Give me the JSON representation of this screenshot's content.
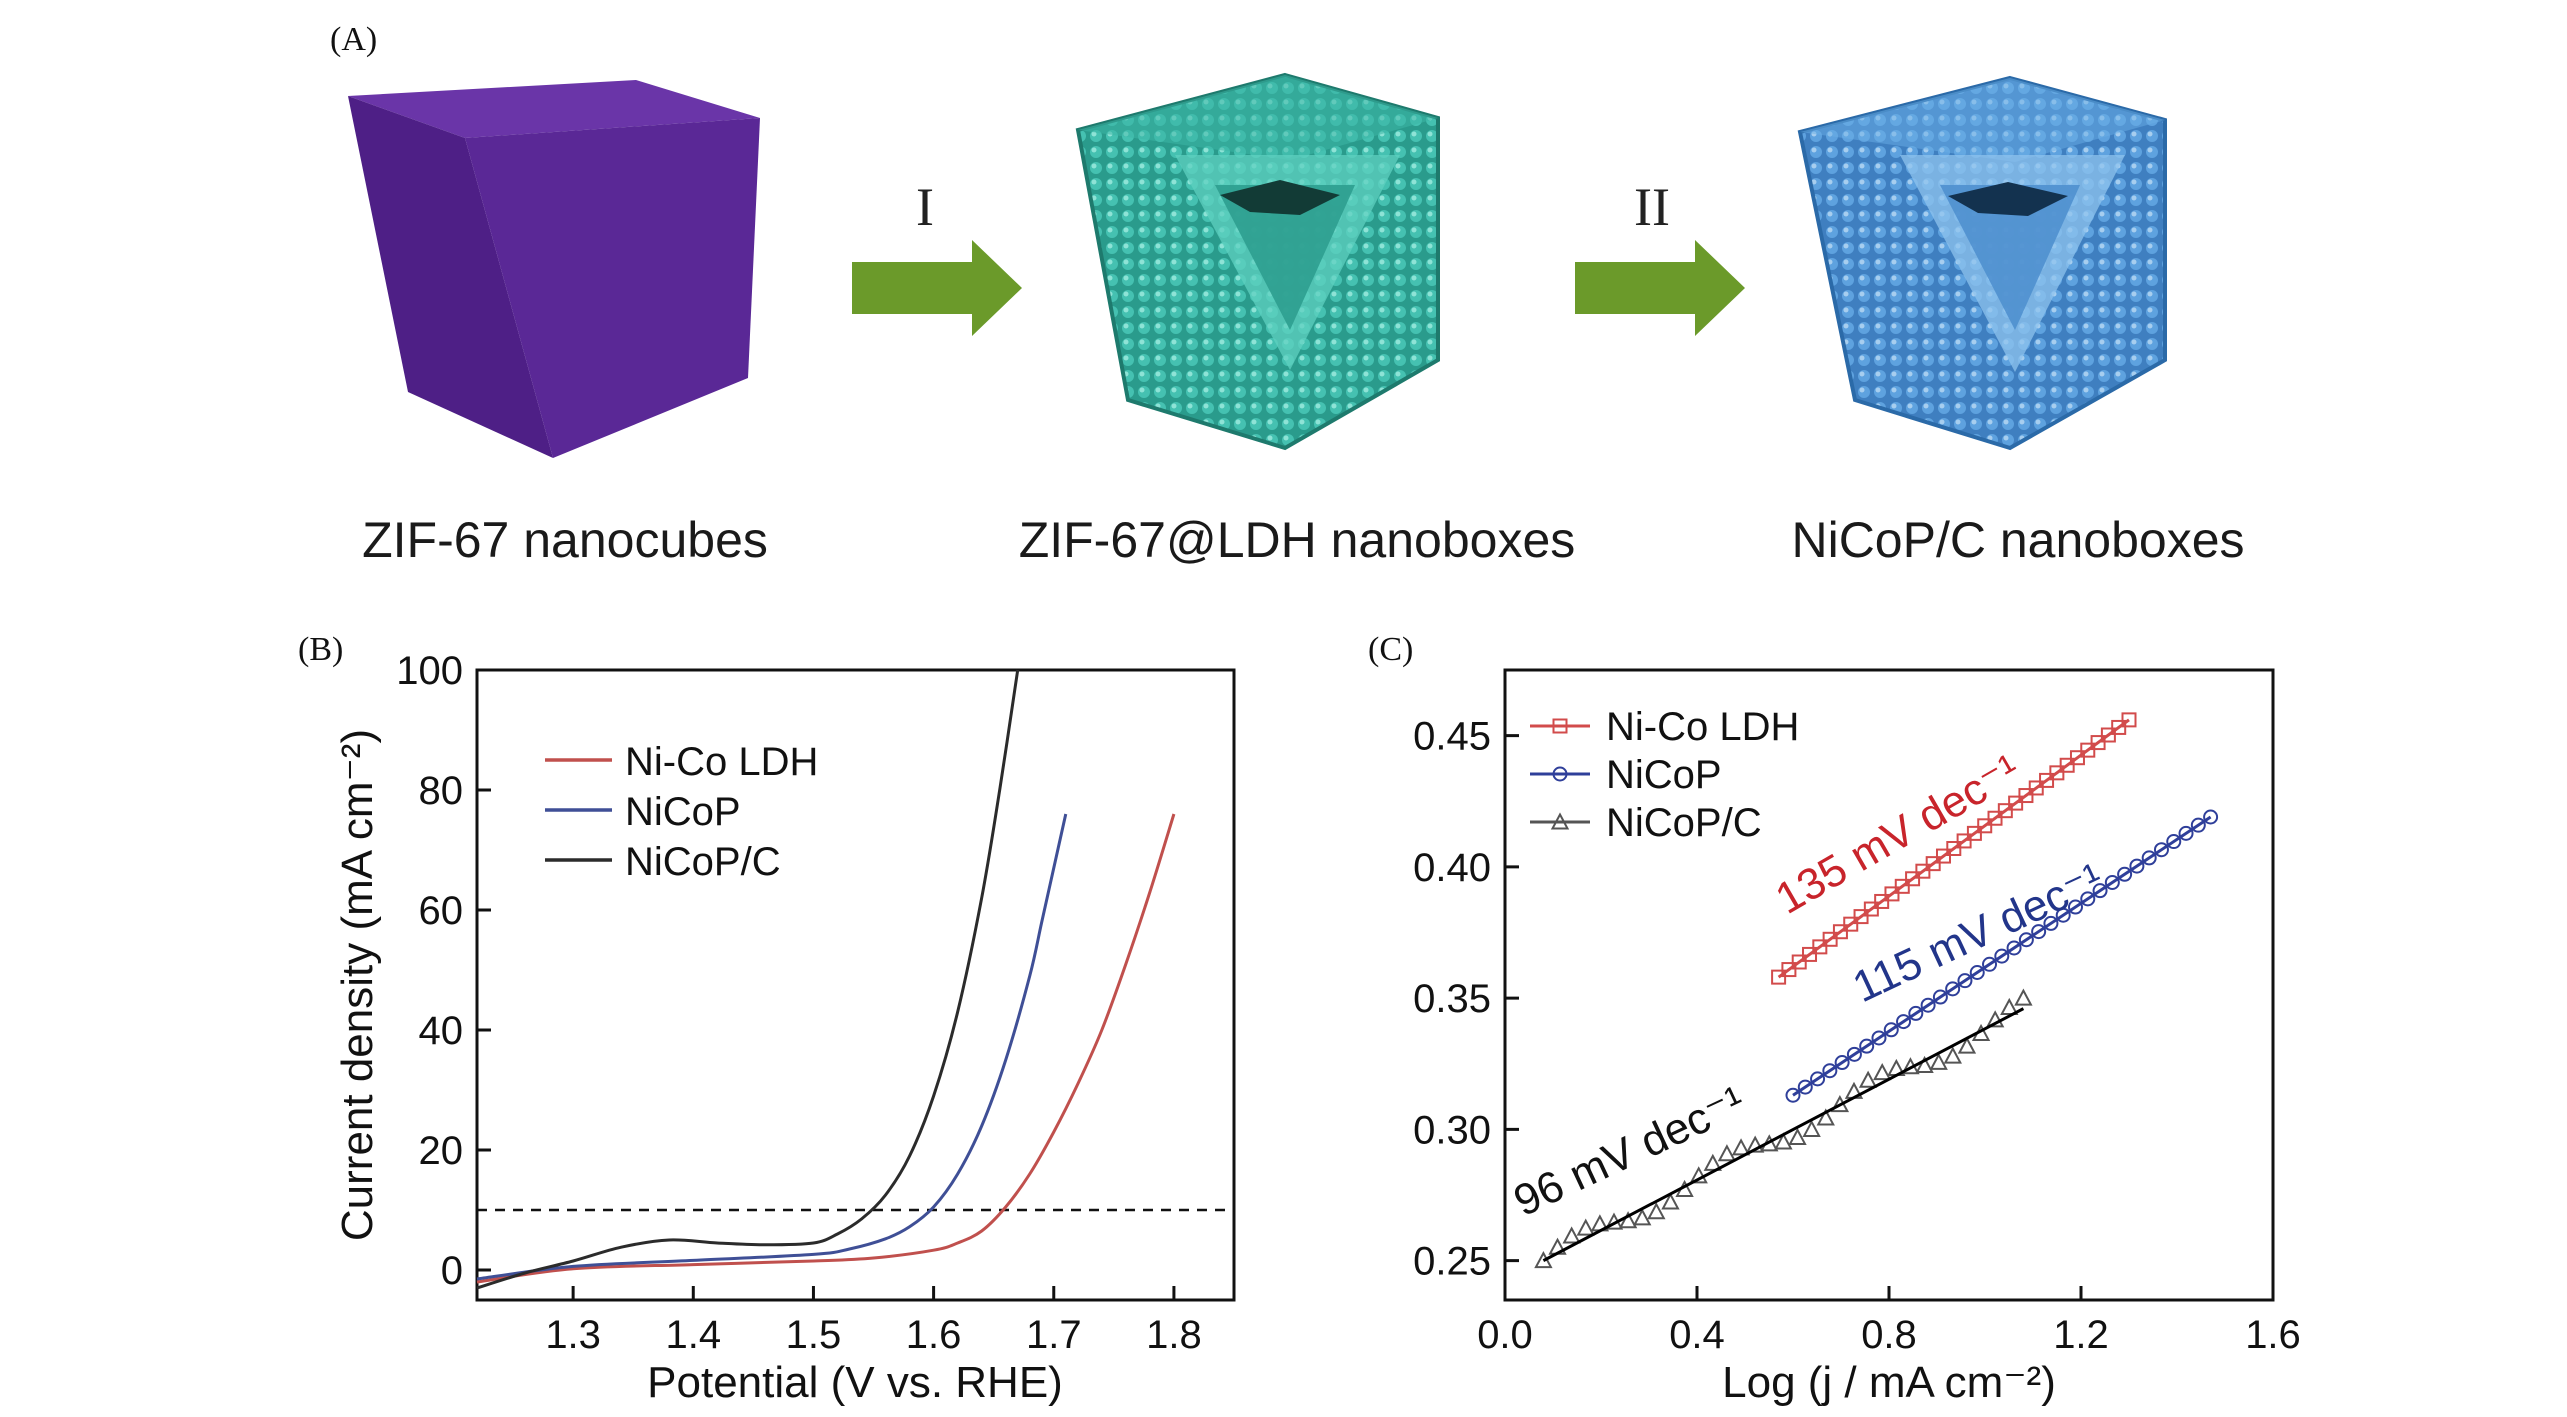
{
  "panel_a": {
    "label": "(A)",
    "step1": "I",
    "step2": "II",
    "captions": [
      "ZIF-67 nanocubes",
      "ZIF-67@LDH nanoboxes",
      "NiCoP/C nanoboxes"
    ],
    "colors": {
      "cube": "#55238f",
      "ldh": "#2fa898",
      "nicop": "#4c8fd0",
      "arrow": "#6b9a2a"
    }
  },
  "chart_data": [
    {
      "panel": "(B)",
      "type": "line",
      "title": "",
      "xlabel": "Potential (V vs. RHE)",
      "ylabel": "Current density (mA cm⁻²)",
      "xlim": [
        1.22,
        1.85
      ],
      "ylim": [
        -5,
        100
      ],
      "xticks": [
        1.3,
        1.4,
        1.5,
        1.6,
        1.7,
        1.8
      ],
      "yticks": [
        0,
        20,
        40,
        60,
        80,
        100
      ],
      "reference_line": {
        "y": 10,
        "style": "dashed"
      },
      "legend": "top-left",
      "series": [
        {
          "name": "Ni-Co LDH",
          "color": "#c0504d",
          "x": [
            1.22,
            1.3,
            1.4,
            1.5,
            1.55,
            1.6,
            1.62,
            1.64,
            1.66,
            1.68,
            1.7,
            1.72,
            1.74,
            1.76,
            1.78,
            1.8
          ],
          "y": [
            -2,
            0.2,
            0.9,
            1.5,
            2.0,
            3.3,
            4.5,
            6.5,
            10.5,
            16,
            23,
            31,
            40,
            51,
            63,
            76
          ]
        },
        {
          "name": "NiCoP",
          "color": "#3f4f96",
          "x": [
            1.22,
            1.3,
            1.4,
            1.5,
            1.53,
            1.56,
            1.58,
            1.6,
            1.62,
            1.64,
            1.66,
            1.68,
            1.69,
            1.7,
            1.71
          ],
          "y": [
            -1.5,
            0.6,
            1.6,
            2.6,
            3.5,
            5.2,
            7.2,
            10.5,
            16,
            24,
            35,
            49,
            58,
            67,
            76
          ]
        },
        {
          "name": "NiCoP/C",
          "color": "#2b2b2b",
          "x": [
            1.22,
            1.26,
            1.3,
            1.34,
            1.38,
            1.42,
            1.46,
            1.5,
            1.52,
            1.54,
            1.56,
            1.58,
            1.6,
            1.62,
            1.64,
            1.655,
            1.67
          ],
          "y": [
            -3,
            -0.5,
            1.5,
            3.8,
            5.0,
            4.5,
            4.2,
            4.5,
            6,
            8.5,
            12.5,
            19,
            29,
            43,
            62,
            80,
            100
          ]
        }
      ]
    },
    {
      "panel": "(C)",
      "type": "scatter",
      "title": "",
      "xlabel": "Log (j / mA cm⁻²)",
      "ylabel": "",
      "xlim": [
        0.0,
        1.6
      ],
      "ylim": [
        0.235,
        0.475
      ],
      "xticks": [
        0.0,
        0.4,
        0.8,
        1.2,
        1.6
      ],
      "yticks": [
        0.25,
        0.3,
        0.35,
        0.4,
        0.45
      ],
      "legend": "top-left",
      "series": [
        {
          "name": "Ni-Co LDH",
          "color": "#d24b4b",
          "marker": "square",
          "x_range": [
            0.57,
            1.3
          ],
          "y_range": [
            0.358,
            0.456
          ],
          "tafel_slope": "135 mV dec⁻¹"
        },
        {
          "name": "NiCoP",
          "color": "#2f3f9a",
          "marker": "circle",
          "x_range": [
            0.6,
            1.47
          ],
          "y_range": [
            0.313,
            0.419
          ],
          "tafel_slope": "115 mV dec⁻¹"
        },
        {
          "name": "NiCoP/C",
          "color": "#555555",
          "marker": "triangle",
          "x_range": [
            0.08,
            1.08
          ],
          "y_range": [
            0.25,
            0.346
          ],
          "tafel_slope": "96 mV dec⁻¹"
        }
      ]
    }
  ]
}
